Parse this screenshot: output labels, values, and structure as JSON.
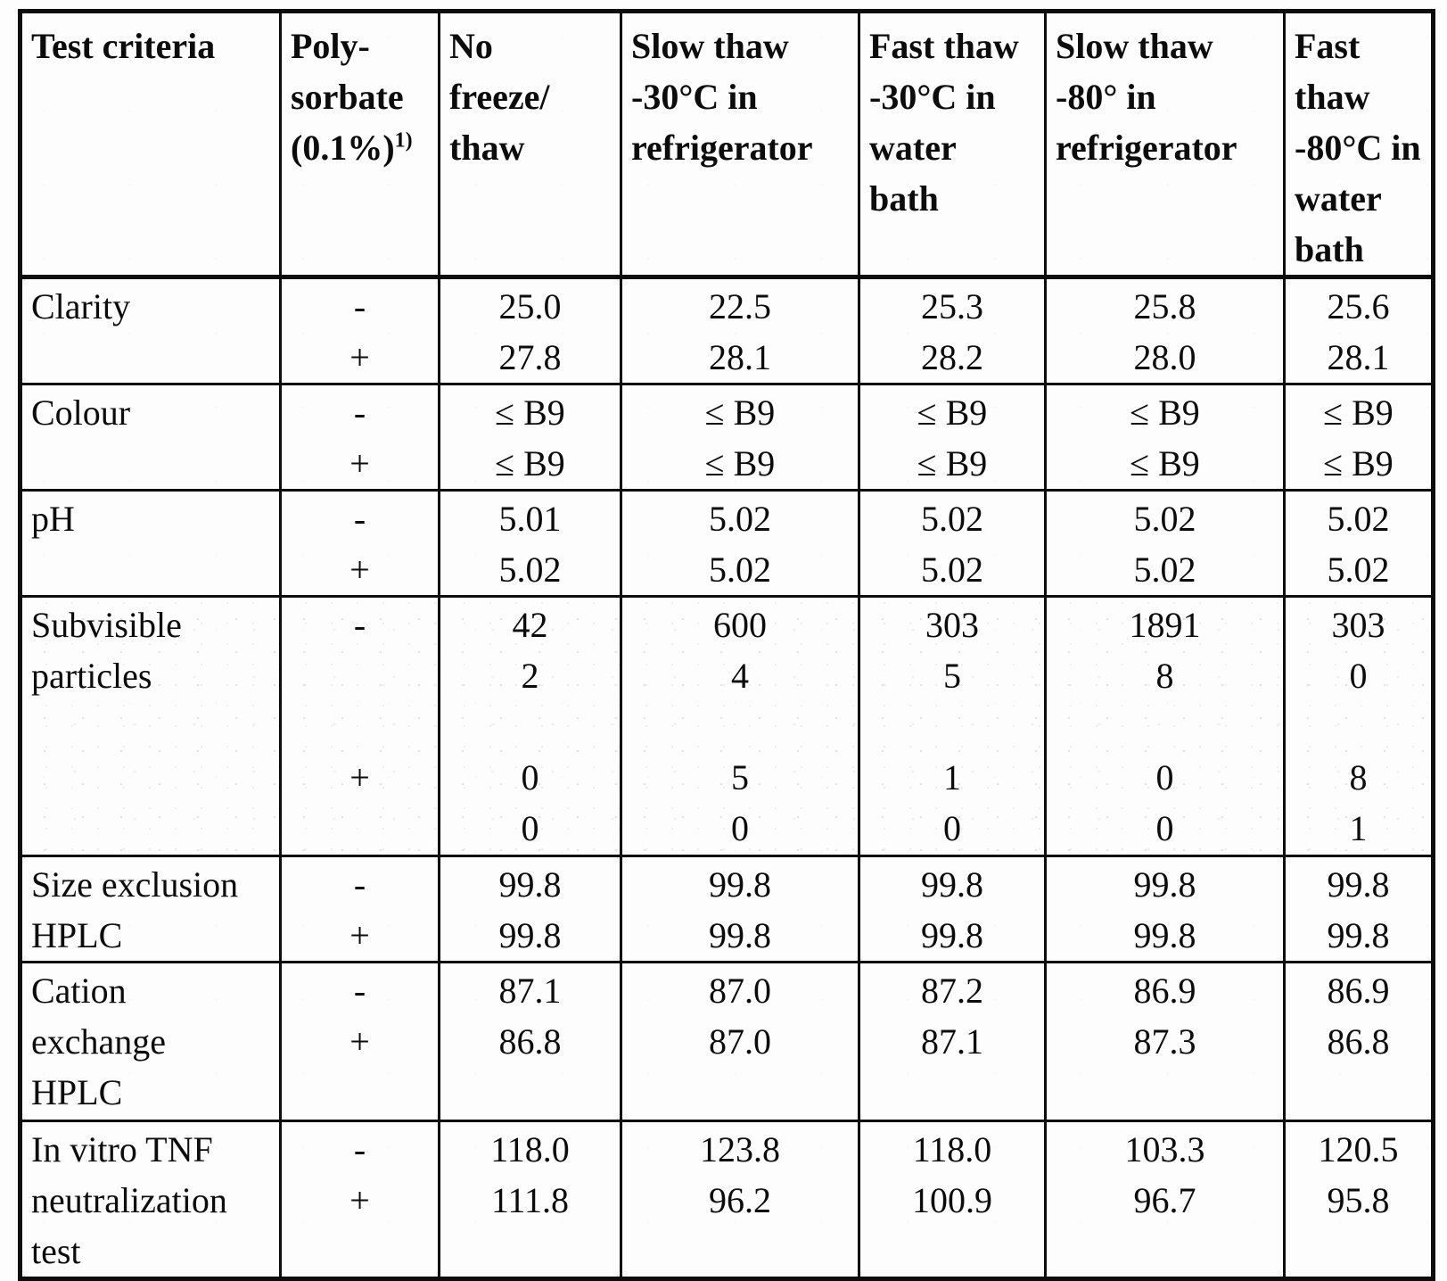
{
  "table": {
    "columns": [
      {
        "label_lines": [
          "Test criteria"
        ]
      },
      {
        "label_lines": [
          "Poly-",
          "sorbate",
          "(0.1%)"
        ],
        "sup": "1)"
      },
      {
        "label_lines": [
          "No",
          "freeze/",
          "thaw"
        ]
      },
      {
        "label_lines": [
          "Slow thaw",
          "-30°C in",
          "refrigerator"
        ]
      },
      {
        "label_lines": [
          "Fast thaw",
          "-30°C in",
          "water",
          "bath"
        ]
      },
      {
        "label_lines": [
          "Slow thaw",
          "-80° in",
          "refrigerator"
        ]
      },
      {
        "label_lines": [
          "Fast",
          "thaw",
          "-80°C in",
          "water",
          "bath"
        ]
      }
    ],
    "sections": [
      {
        "criteria_lines": [
          "Clarity"
        ],
        "sign_lines": [
          "-",
          "+"
        ],
        "value_lines": [
          [
            "25.0",
            "27.8"
          ],
          [
            "22.5",
            "28.1"
          ],
          [
            "25.3",
            "28.2"
          ],
          [
            "25.8",
            "28.0"
          ],
          [
            "25.6",
            "28.1"
          ]
        ]
      },
      {
        "criteria_lines": [
          "Colour"
        ],
        "sign_lines": [
          "-",
          "+"
        ],
        "value_lines": [
          [
            "≤ B9",
            "≤ B9"
          ],
          [
            "≤ B9",
            "≤ B9"
          ],
          [
            "≤ B9",
            "≤ B9"
          ],
          [
            "≤ B9",
            "≤ B9"
          ],
          [
            "≤ B9",
            "≤ B9"
          ]
        ]
      },
      {
        "criteria_lines": [
          "pH"
        ],
        "sign_lines": [
          "-",
          "+"
        ],
        "value_lines": [
          [
            "5.01",
            "5.02"
          ],
          [
            "5.02",
            "5.02"
          ],
          [
            "5.02",
            "5.02"
          ],
          [
            "5.02",
            "5.02"
          ],
          [
            "5.02",
            "5.02"
          ]
        ]
      },
      {
        "criteria_lines": [
          "Subvisible",
          "particles"
        ],
        "sign_lines": [
          "-",
          "",
          "",
          "+",
          ""
        ],
        "value_lines": [
          [
            "42",
            "2",
            "",
            "0",
            "0"
          ],
          [
            "600",
            "4",
            "",
            "5",
            "0"
          ],
          [
            "303",
            "5",
            "",
            "1",
            "0"
          ],
          [
            "1891",
            "8",
            "",
            "0",
            "0"
          ],
          [
            "303",
            "0",
            "",
            "8",
            "1"
          ]
        ]
      },
      {
        "criteria_lines": [
          "Size exclusion",
          "HPLC"
        ],
        "sign_lines": [
          "-",
          "+"
        ],
        "value_lines": [
          [
            "99.8",
            "99.8"
          ],
          [
            "99.8",
            "99.8"
          ],
          [
            "99.8",
            "99.8"
          ],
          [
            "99.8",
            "99.8"
          ],
          [
            "99.8",
            "99.8"
          ]
        ]
      },
      {
        "criteria_lines": [
          "Cation",
          "exchange",
          "HPLC"
        ],
        "sign_lines": [
          "-",
          "+"
        ],
        "value_lines": [
          [
            "87.1",
            "86.8"
          ],
          [
            "87.0",
            "87.0"
          ],
          [
            "87.2",
            "87.1"
          ],
          [
            "86.9",
            "87.3"
          ],
          [
            "86.9",
            "86.8"
          ]
        ]
      },
      {
        "criteria_lines": [
          "In vitro TNF",
          "neutralization",
          "test"
        ],
        "sign_lines": [
          "-",
          "+"
        ],
        "value_lines": [
          [
            "118.0",
            "111.8"
          ],
          [
            "123.8",
            "96.2"
          ],
          [
            "118.0",
            "100.9"
          ],
          [
            "103.3",
            "96.7"
          ],
          [
            "120.5",
            "95.8"
          ]
        ]
      }
    ]
  }
}
